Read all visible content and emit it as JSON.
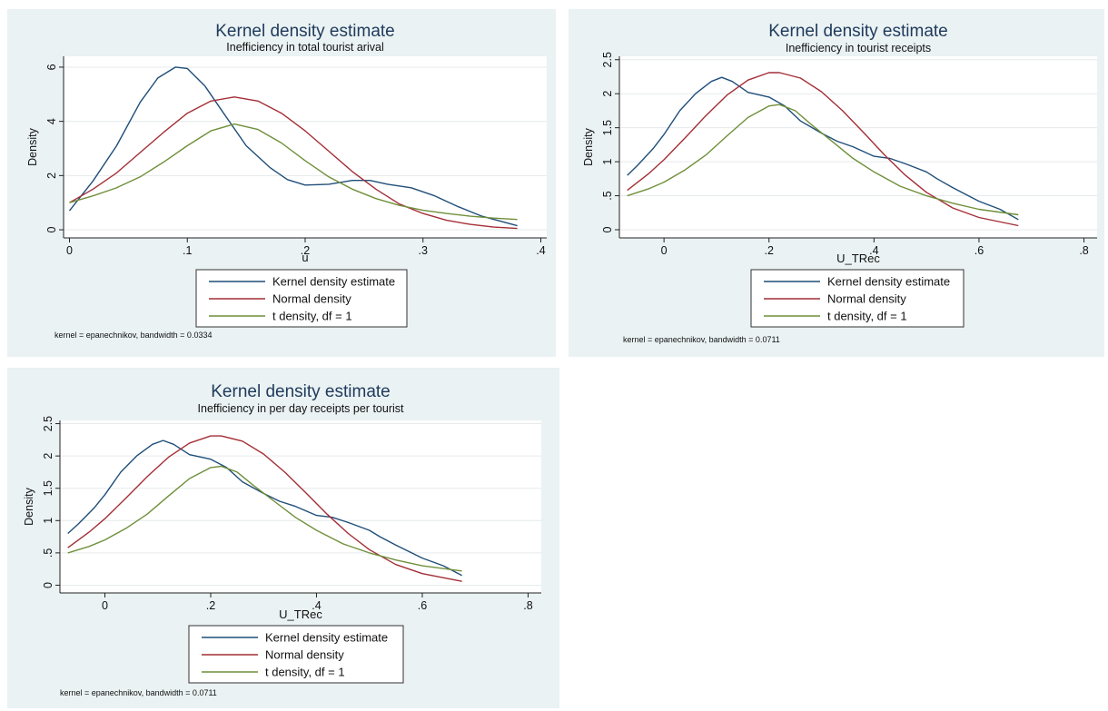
{
  "colors": {
    "panel_bg": "#eaf2f3",
    "plot_bg": "#ffffff",
    "grid": "#e6eaec",
    "title": "#1f3a5c",
    "kernel": "#1f4e79",
    "normal": "#a32e36",
    "t": "#6f8f3a"
  },
  "chart_data": [
    {
      "type": "line",
      "title": "Kernel density estimate",
      "subtitle": "Inefficiency in total tourist arival",
      "xlabel": "u",
      "ylabel": "Density",
      "xlim": [
        -0.005,
        0.405
      ],
      "ylim": [
        -0.3,
        6.4
      ],
      "grid": true,
      "legend_placement": "bottom",
      "xticks": [
        0,
        0.1,
        0.2,
        0.3,
        0.4
      ],
      "xtick_labels": [
        "0",
        ".1",
        ".2",
        ".3",
        ".4"
      ],
      "yticks": [
        0,
        2,
        4,
        6
      ],
      "ytick_labels": [
        "0",
        "2",
        "4",
        "6"
      ],
      "note": "kernel = epanechnikov, bandwidth = 0.0334",
      "series": [
        {
          "name": "Kernel density estimate",
          "color": "kernel",
          "x": [
            0,
            0.02,
            0.04,
            0.06,
            0.075,
            0.09,
            0.1,
            0.115,
            0.13,
            0.15,
            0.17,
            0.185,
            0.2,
            0.22,
            0.24,
            0.255,
            0.27,
            0.29,
            0.31,
            0.33,
            0.35,
            0.38
          ],
          "y": [
            0.7,
            1.8,
            3.1,
            4.7,
            5.6,
            6.0,
            5.95,
            5.3,
            4.35,
            3.1,
            2.3,
            1.85,
            1.65,
            1.68,
            1.82,
            1.82,
            1.68,
            1.55,
            1.25,
            0.85,
            0.5,
            0.15
          ]
        },
        {
          "name": "Normal density",
          "color": "normal",
          "x": [
            0,
            0.02,
            0.04,
            0.06,
            0.08,
            0.1,
            0.12,
            0.14,
            0.16,
            0.18,
            0.2,
            0.22,
            0.24,
            0.26,
            0.28,
            0.3,
            0.32,
            0.34,
            0.36,
            0.38
          ],
          "y": [
            1.0,
            1.5,
            2.1,
            2.85,
            3.6,
            4.3,
            4.75,
            4.9,
            4.75,
            4.3,
            3.65,
            2.9,
            2.15,
            1.5,
            0.95,
            0.6,
            0.35,
            0.2,
            0.1,
            0.05
          ]
        },
        {
          "name": "t density, df = 1",
          "color": "t",
          "x": [
            0,
            0.02,
            0.04,
            0.06,
            0.08,
            0.1,
            0.12,
            0.14,
            0.16,
            0.18,
            0.2,
            0.22,
            0.24,
            0.26,
            0.28,
            0.3,
            0.32,
            0.34,
            0.36,
            0.38
          ],
          "y": [
            1.0,
            1.25,
            1.55,
            1.95,
            2.5,
            3.1,
            3.65,
            3.9,
            3.7,
            3.2,
            2.55,
            1.95,
            1.5,
            1.15,
            0.9,
            0.72,
            0.6,
            0.5,
            0.43,
            0.38
          ]
        }
      ]
    },
    {
      "type": "line",
      "title": "Kernel density estimate",
      "subtitle": "Inefficiency in tourist receipts",
      "xlabel": "U_TRec",
      "ylabel": "Density",
      "xlim": [
        -0.085,
        0.825
      ],
      "ylim": [
        -0.12,
        2.55
      ],
      "grid": true,
      "legend_placement": "bottom",
      "xticks": [
        0,
        0.2,
        0.4,
        0.6,
        0.8
      ],
      "xtick_labels": [
        "0",
        ".2",
        ".4",
        ".6",
        ".8"
      ],
      "yticks": [
        0,
        0.5,
        1,
        1.5,
        2,
        2.5
      ],
      "ytick_labels": [
        "0",
        ".5",
        "1",
        "1.5",
        "2",
        "2.5"
      ],
      "note": "kernel = epanechnikov, bandwidth = 0.0711",
      "series": [
        {
          "name": "Kernel density estimate",
          "color": "kernel",
          "x": [
            -0.07,
            -0.05,
            -0.02,
            0,
            0.03,
            0.06,
            0.09,
            0.11,
            0.13,
            0.16,
            0.2,
            0.23,
            0.26,
            0.3,
            0.33,
            0.36,
            0.4,
            0.43,
            0.46,
            0.5,
            0.52,
            0.55,
            0.6,
            0.64,
            0.675
          ],
          "y": [
            0.8,
            0.95,
            1.2,
            1.4,
            1.75,
            2.0,
            2.18,
            2.24,
            2.18,
            2.02,
            1.95,
            1.82,
            1.6,
            1.42,
            1.3,
            1.22,
            1.08,
            1.05,
            0.97,
            0.85,
            0.75,
            0.62,
            0.42,
            0.3,
            0.15
          ]
        },
        {
          "name": "Normal density",
          "color": "normal",
          "x": [
            -0.07,
            -0.03,
            0,
            0.04,
            0.08,
            0.12,
            0.16,
            0.2,
            0.22,
            0.26,
            0.3,
            0.34,
            0.38,
            0.42,
            0.46,
            0.5,
            0.55,
            0.6,
            0.675
          ],
          "y": [
            0.58,
            0.82,
            1.03,
            1.35,
            1.68,
            1.98,
            2.2,
            2.31,
            2.31,
            2.23,
            2.03,
            1.75,
            1.43,
            1.1,
            0.8,
            0.55,
            0.32,
            0.18,
            0.06
          ]
        },
        {
          "name": "t density, df = 1",
          "color": "t",
          "x": [
            -0.07,
            -0.03,
            0,
            0.04,
            0.08,
            0.12,
            0.16,
            0.2,
            0.22,
            0.25,
            0.28,
            0.32,
            0.36,
            0.4,
            0.45,
            0.5,
            0.55,
            0.6,
            0.675
          ],
          "y": [
            0.5,
            0.6,
            0.7,
            0.88,
            1.1,
            1.38,
            1.65,
            1.82,
            1.84,
            1.75,
            1.55,
            1.3,
            1.05,
            0.85,
            0.64,
            0.5,
            0.39,
            0.3,
            0.22
          ]
        }
      ]
    },
    {
      "type": "line",
      "title": "Kernel density estimate",
      "subtitle": "Inefficiency in per day receipts per tourist",
      "xlabel": "U_TRec",
      "ylabel": "Density",
      "xlim": [
        -0.085,
        0.825
      ],
      "ylim": [
        -0.12,
        2.55
      ],
      "grid": true,
      "legend_placement": "bottom",
      "xticks": [
        0,
        0.2,
        0.4,
        0.6,
        0.8
      ],
      "xtick_labels": [
        "0",
        ".2",
        ".4",
        ".6",
        ".8"
      ],
      "yticks": [
        0,
        0.5,
        1,
        1.5,
        2,
        2.5
      ],
      "ytick_labels": [
        "0",
        ".5",
        "1",
        "1.5",
        "2",
        "2.5"
      ],
      "note": "kernel = epanechnikov, bandwidth = 0.0711",
      "series": [
        {
          "name": "Kernel density estimate",
          "color": "kernel",
          "x": [
            -0.07,
            -0.05,
            -0.02,
            0,
            0.03,
            0.06,
            0.09,
            0.11,
            0.13,
            0.16,
            0.2,
            0.23,
            0.26,
            0.3,
            0.33,
            0.36,
            0.4,
            0.43,
            0.46,
            0.5,
            0.52,
            0.55,
            0.6,
            0.64,
            0.675
          ],
          "y": [
            0.8,
            0.95,
            1.2,
            1.4,
            1.75,
            2.0,
            2.18,
            2.24,
            2.18,
            2.02,
            1.95,
            1.82,
            1.6,
            1.42,
            1.3,
            1.22,
            1.08,
            1.05,
            0.97,
            0.85,
            0.75,
            0.62,
            0.42,
            0.3,
            0.15
          ]
        },
        {
          "name": "Normal density",
          "color": "normal",
          "x": [
            -0.07,
            -0.03,
            0,
            0.04,
            0.08,
            0.12,
            0.16,
            0.2,
            0.22,
            0.26,
            0.3,
            0.34,
            0.38,
            0.42,
            0.46,
            0.5,
            0.55,
            0.6,
            0.675
          ],
          "y": [
            0.58,
            0.82,
            1.03,
            1.35,
            1.68,
            1.98,
            2.2,
            2.31,
            2.31,
            2.23,
            2.03,
            1.75,
            1.43,
            1.1,
            0.8,
            0.55,
            0.32,
            0.18,
            0.06
          ]
        },
        {
          "name": "t density, df = 1",
          "color": "t",
          "x": [
            -0.07,
            -0.03,
            0,
            0.04,
            0.08,
            0.12,
            0.16,
            0.2,
            0.22,
            0.25,
            0.28,
            0.32,
            0.36,
            0.4,
            0.45,
            0.5,
            0.55,
            0.6,
            0.675
          ],
          "y": [
            0.5,
            0.6,
            0.7,
            0.88,
            1.1,
            1.38,
            1.65,
            1.82,
            1.84,
            1.75,
            1.55,
            1.3,
            1.05,
            0.85,
            0.64,
            0.5,
            0.39,
            0.3,
            0.22
          ]
        }
      ]
    }
  ]
}
